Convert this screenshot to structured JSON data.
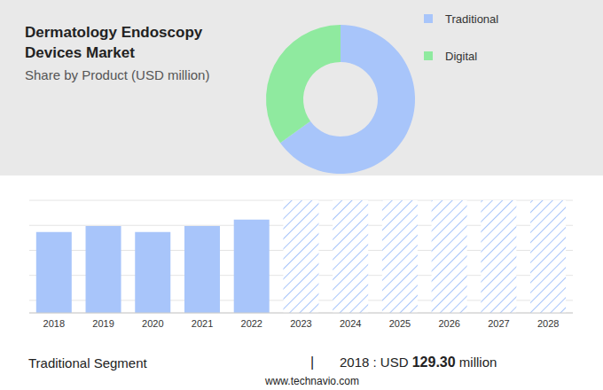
{
  "chart_data": [
    {
      "type": "pie",
      "title": "Dermatology Endoscopy Devices Market",
      "subtitle": "Share by Product (USD million)",
      "categories": [
        "Traditional",
        "Digital"
      ],
      "values": [
        65,
        35
      ],
      "colors": [
        "#a8c5fa",
        "#8fea9f"
      ],
      "legend": "right"
    },
    {
      "type": "bar",
      "categories": [
        "2018",
        "2019",
        "2020",
        "2021",
        "2022",
        "2023",
        "2024",
        "2025",
        "2026",
        "2027",
        "2028"
      ],
      "series": [
        {
          "values": [
            129.3,
            139,
            129.3,
            139,
            149,
            null,
            null,
            null,
            null,
            null,
            null
          ],
          "color": "#a8c5fa"
        },
        {
          "values": [
            null,
            null,
            null,
            null,
            null,
            180,
            180,
            180,
            180,
            180,
            180
          ],
          "color": "#a8c5fa",
          "marker": "hatch"
        }
      ],
      "ylim": [
        0,
        180
      ],
      "yticks": [
        0,
        20,
        40,
        60,
        80,
        100,
        120,
        140,
        160,
        180
      ],
      "grid": true,
      "tick_labels": "x"
    }
  ],
  "annotation": {
    "label": "Traditional Segment",
    "separator": "|",
    "text": "2018 : USD",
    "value": "129.30",
    "unit": "million"
  },
  "source": "www.technavio.com"
}
